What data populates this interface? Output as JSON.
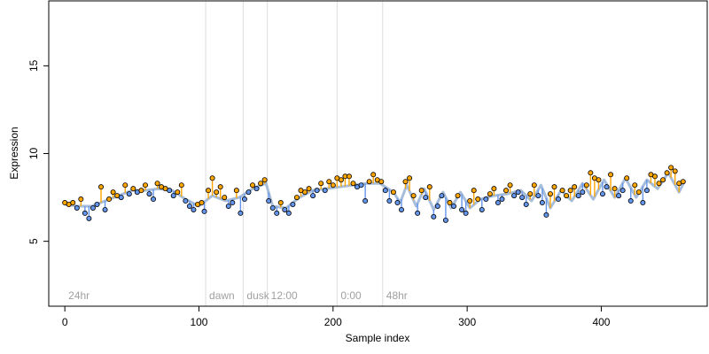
{
  "chart_data": {
    "type": "scatter",
    "title": "",
    "xlabel": "Sample index",
    "ylabel": "Expression",
    "xlim": [
      -12,
      479
    ],
    "ylim": [
      1.3,
      18.7
    ],
    "x_ticks": [
      0,
      100,
      200,
      300,
      400
    ],
    "y_ticks": [
      5,
      10,
      15
    ],
    "grid": false,
    "legend": "none",
    "colors": {
      "above_fit": "#FFA500",
      "below_fit": "#6495ED",
      "fit_line": "#A6BDDB",
      "point_edge": "#000000",
      "phase_line": "#DDDDDD",
      "phase_text": "#A0A0A0",
      "axis": "#000000"
    },
    "phase_boundaries": [
      0,
      105,
      133,
      151,
      203,
      237
    ],
    "phase_labels": [
      {
        "x": 0,
        "label": "24hr"
      },
      {
        "x": 105,
        "label": "dawn"
      },
      {
        "x": 133,
        "label": "dusk"
      },
      {
        "x": 151,
        "label": "12:00"
      },
      {
        "x": 203,
        "label": "0:00"
      },
      {
        "x": 237,
        "label": "48hr"
      }
    ],
    "n_points": 462,
    "series": [
      {
        "points": [
          [
            0,
            7.2
          ],
          [
            3,
            7.1
          ],
          [
            6,
            7.2
          ],
          [
            9,
            6.9
          ],
          [
            12,
            7.4
          ],
          [
            15,
            6.6
          ],
          [
            18,
            6.3
          ],
          [
            21,
            6.9
          ],
          [
            24,
            7.1
          ],
          [
            27,
            8.1
          ],
          [
            30,
            6.8
          ],
          [
            33,
            7.4
          ],
          [
            36,
            7.8
          ],
          [
            39,
            7.6
          ],
          [
            42,
            7.5
          ],
          [
            45,
            8.2
          ],
          [
            48,
            7.7
          ],
          [
            51,
            8.0
          ],
          [
            54,
            7.8
          ],
          [
            57,
            7.9
          ],
          [
            60,
            8.2
          ],
          [
            63,
            7.7
          ],
          [
            66,
            7.4
          ],
          [
            69,
            8.3
          ],
          [
            72,
            8.1
          ],
          [
            75,
            8.0
          ],
          [
            78,
            7.9
          ],
          [
            81,
            7.6
          ],
          [
            84,
            7.8
          ],
          [
            87,
            8.2
          ],
          [
            90,
            7.3
          ],
          [
            93,
            7.0
          ],
          [
            96,
            6.8
          ],
          [
            99,
            7.1
          ],
          [
            102,
            7.2
          ],
          [
            104,
            6.7
          ],
          [
            107,
            7.9
          ],
          [
            110,
            8.6
          ],
          [
            113,
            7.8
          ],
          [
            116,
            8.1
          ],
          [
            119,
            7.5
          ],
          [
            122,
            7.0
          ],
          [
            125,
            7.2
          ],
          [
            128,
            7.9
          ],
          [
            131,
            6.6
          ],
          [
            134,
            7.4
          ],
          [
            137,
            7.8
          ],
          [
            140,
            8.2
          ],
          [
            143,
            8.0
          ],
          [
            146,
            8.3
          ],
          [
            149,
            8.5
          ],
          [
            152,
            7.3
          ],
          [
            155,
            6.9
          ],
          [
            158,
            6.6
          ],
          [
            161,
            7.2
          ],
          [
            164,
            6.8
          ],
          [
            167,
            6.6
          ],
          [
            170,
            7.1
          ],
          [
            173,
            7.5
          ],
          [
            176,
            7.9
          ],
          [
            179,
            7.8
          ],
          [
            182,
            8.0
          ],
          [
            185,
            7.6
          ],
          [
            188,
            7.9
          ],
          [
            191,
            8.3
          ],
          [
            194,
            7.9
          ],
          [
            197,
            8.4
          ],
          [
            200,
            8.2
          ],
          [
            203,
            8.6
          ],
          [
            206,
            8.5
          ],
          [
            209,
            8.7
          ],
          [
            212,
            8.7
          ],
          [
            215,
            8.3
          ],
          [
            218,
            8.1
          ],
          [
            221,
            8.2
          ],
          [
            224,
            7.3
          ],
          [
            227,
            8.4
          ],
          [
            230,
            8.8
          ],
          [
            233,
            8.5
          ],
          [
            236,
            8.4
          ],
          [
            239,
            7.9
          ],
          [
            242,
            7.3
          ],
          [
            245,
            7.8
          ],
          [
            248,
            7.2
          ],
          [
            251,
            6.8
          ],
          [
            254,
            8.4
          ],
          [
            257,
            8.6
          ],
          [
            260,
            7.6
          ],
          [
            263,
            6.6
          ],
          [
            266,
            7.9
          ],
          [
            269,
            7.5
          ],
          [
            272,
            8.1
          ],
          [
            275,
            6.4
          ],
          [
            278,
            7.0
          ],
          [
            281,
            7.6
          ],
          [
            284,
            6.2
          ],
          [
            287,
            7.2
          ],
          [
            290,
            7.0
          ],
          [
            293,
            7.6
          ],
          [
            296,
            6.8
          ],
          [
            299,
            6.6
          ],
          [
            302,
            7.3
          ],
          [
            305,
            7.9
          ],
          [
            308,
            7.4
          ],
          [
            311,
            6.8
          ],
          [
            314,
            7.4
          ],
          [
            317,
            7.7
          ],
          [
            320,
            8.0
          ],
          [
            323,
            7.2
          ],
          [
            326,
            7.4
          ],
          [
            329,
            7.9
          ],
          [
            332,
            8.2
          ],
          [
            335,
            7.6
          ],
          [
            338,
            7.8
          ],
          [
            341,
            7.5
          ],
          [
            344,
            7.1
          ],
          [
            347,
            7.7
          ],
          [
            350,
            8.2
          ],
          [
            353,
            7.6
          ],
          [
            356,
            7.2
          ],
          [
            359,
            6.5
          ],
          [
            362,
            7.7
          ],
          [
            365,
            8.1
          ],
          [
            368,
            7.4
          ],
          [
            371,
            7.9
          ],
          [
            374,
            7.6
          ],
          [
            377,
            7.9
          ],
          [
            380,
            8.1
          ],
          [
            383,
            7.6
          ],
          [
            386,
            7.8
          ],
          [
            389,
            8.2
          ],
          [
            392,
            8.9
          ],
          [
            395,
            8.6
          ],
          [
            398,
            8.5
          ],
          [
            401,
            7.7
          ],
          [
            404,
            8.1
          ],
          [
            407,
            8.8
          ],
          [
            410,
            8.0
          ],
          [
            413,
            7.6
          ],
          [
            416,
            7.9
          ],
          [
            419,
            8.6
          ],
          [
            422,
            7.3
          ],
          [
            425,
            8.2
          ],
          [
            428,
            7.8
          ],
          [
            431,
            7.2
          ],
          [
            434,
            7.9
          ],
          [
            437,
            8.8
          ],
          [
            440,
            8.7
          ],
          [
            443,
            8.3
          ],
          [
            446,
            8.5
          ],
          [
            449,
            8.9
          ],
          [
            452,
            9.2
          ],
          [
            455,
            9.0
          ],
          [
            458,
            8.3
          ],
          [
            461,
            8.4
          ]
        ]
      }
    ],
    "fit_points": [
      [
        0,
        7.1
      ],
      [
        10,
        7.0
      ],
      [
        20,
        7.0
      ],
      [
        30,
        7.3
      ],
      [
        40,
        7.6
      ],
      [
        50,
        7.9
      ],
      [
        60,
        7.9
      ],
      [
        70,
        8.0
      ],
      [
        80,
        7.9
      ],
      [
        90,
        7.4
      ],
      [
        100,
        7.0
      ],
      [
        110,
        7.6
      ],
      [
        120,
        7.3
      ],
      [
        130,
        7.5
      ],
      [
        140,
        8.0
      ],
      [
        150,
        8.3
      ],
      [
        155,
        7.0
      ],
      [
        165,
        6.9
      ],
      [
        175,
        7.5
      ],
      [
        185,
        7.9
      ],
      [
        195,
        8.0
      ],
      [
        205,
        8.1
      ],
      [
        215,
        8.2
      ],
      [
        225,
        8.3
      ],
      [
        235,
        8.3
      ],
      [
        245,
        7.8
      ],
      [
        250,
        7.2
      ],
      [
        255,
        8.2
      ],
      [
        262,
        7.0
      ],
      [
        268,
        8.0
      ],
      [
        275,
        6.8
      ],
      [
        282,
        7.8
      ],
      [
        288,
        6.9
      ],
      [
        295,
        7.8
      ],
      [
        302,
        6.9
      ],
      [
        310,
        7.4
      ],
      [
        320,
        7.6
      ],
      [
        330,
        7.7
      ],
      [
        340,
        7.9
      ],
      [
        348,
        7.3
      ],
      [
        355,
        8.2
      ],
      [
        362,
        6.9
      ],
      [
        370,
        7.9
      ],
      [
        378,
        7.3
      ],
      [
        386,
        8.3
      ],
      [
        394,
        7.4
      ],
      [
        402,
        8.5
      ],
      [
        410,
        7.5
      ],
      [
        418,
        8.6
      ],
      [
        426,
        7.5
      ],
      [
        434,
        8.5
      ],
      [
        442,
        8.0
      ],
      [
        450,
        8.9
      ],
      [
        458,
        7.8
      ],
      [
        462,
        8.4
      ]
    ]
  }
}
